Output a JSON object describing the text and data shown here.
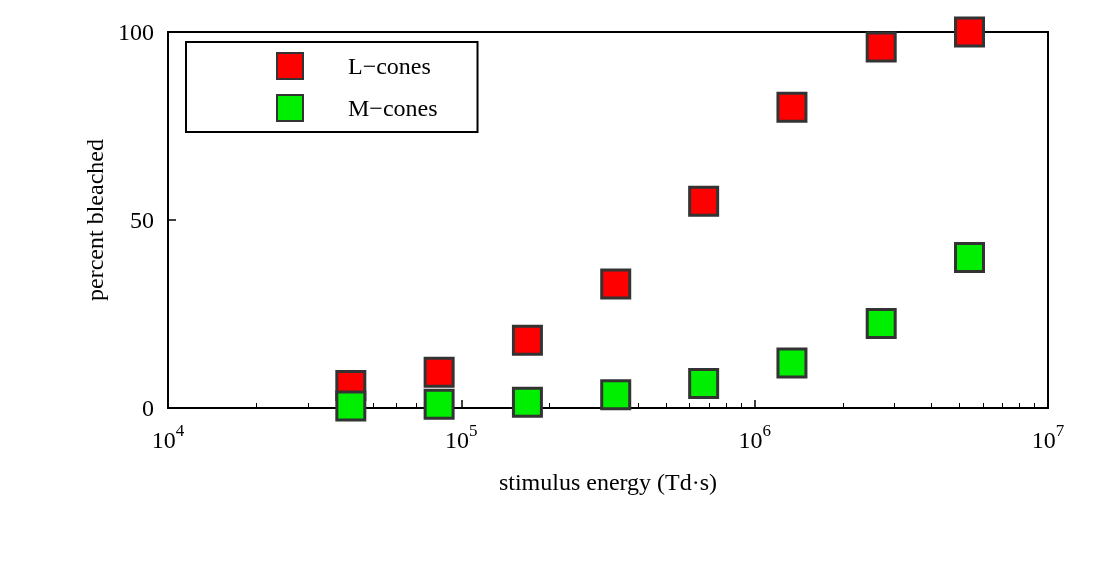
{
  "chart_data": {
    "type": "scatter",
    "xlabel": "stimulus energy (Td·s)",
    "ylabel": "percent bleached",
    "x": [
      42000,
      84000,
      168000,
      336000,
      670000,
      1340000,
      2700000,
      5400000
    ],
    "series": [
      {
        "name": "L−cones",
        "color": "#ff0000",
        "values": [
          6,
          9.5,
          18,
          33,
          55,
          80,
          96,
          100
        ]
      },
      {
        "name": "M−cones",
        "color": "#00ee00",
        "values": [
          0.5,
          1,
          1.5,
          3.5,
          6.5,
          12,
          22.5,
          40
        ]
      }
    ],
    "log": "x",
    "xlim": [
      10000,
      10000000
    ],
    "xticks": [
      {
        "value": 10000,
        "label": "10$^{4}$"
      },
      {
        "value": 100000,
        "label": "10$^{5}$"
      },
      {
        "value": 1000000,
        "label": "10$^{6}$"
      },
      {
        "value": 10000000,
        "label": "10$^{7}$"
      }
    ],
    "ylim": [
      0,
      100
    ],
    "yticks": [
      0,
      50,
      100
    ],
    "grid": false,
    "legend": "top left",
    "marker": "square"
  }
}
